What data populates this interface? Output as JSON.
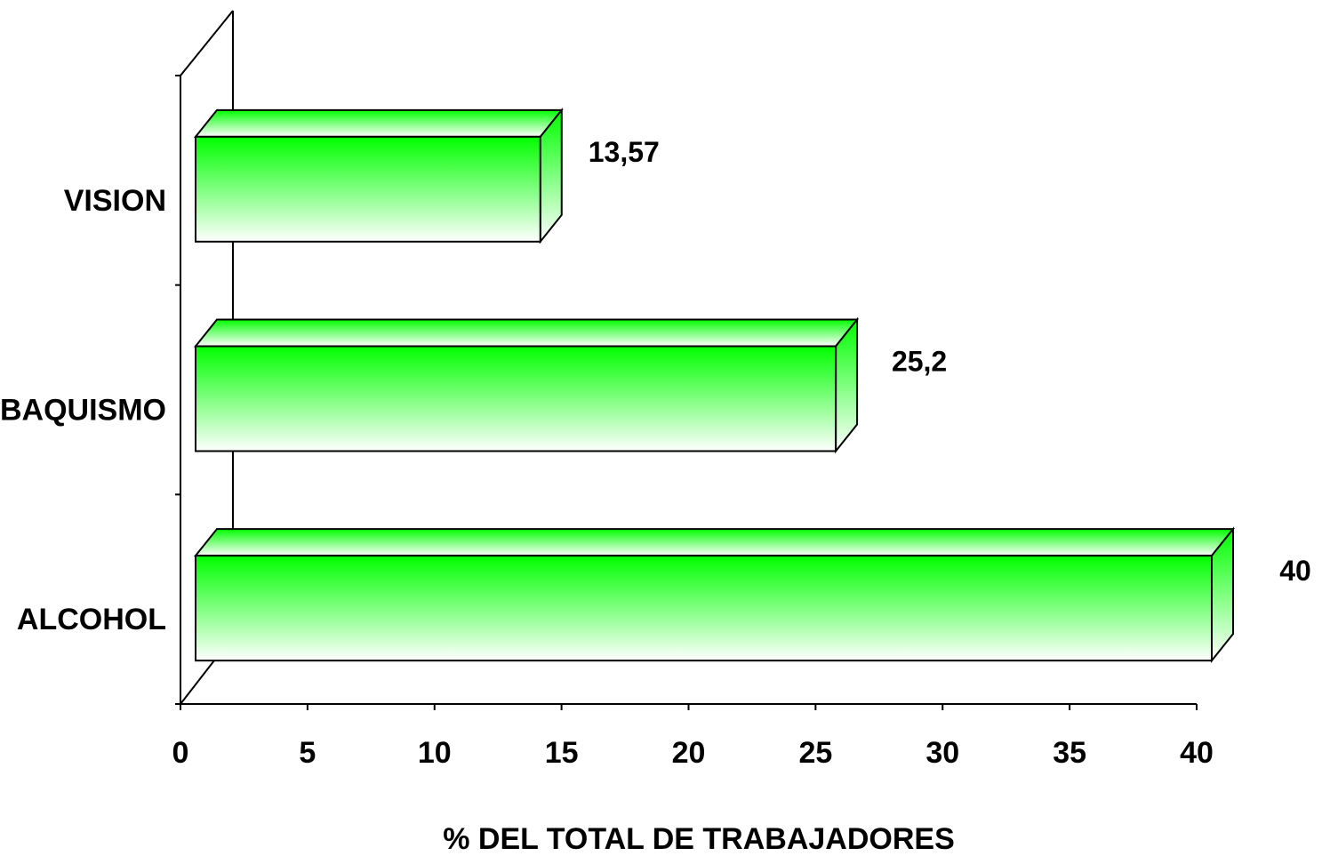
{
  "chart_data": {
    "type": "bar",
    "orientation": "horizontal",
    "three_d": true,
    "title": "",
    "xlabel": "% DEL TOTAL DE TRABAJADORES",
    "ylabel": "",
    "categories": [
      "VISION",
      "TABAQUISMO",
      "ALCOHOL"
    ],
    "values": [
      13.57,
      25.2,
      40
    ],
    "value_labels": [
      "13,57",
      "25,2",
      "40"
    ],
    "xlim": [
      0,
      40
    ],
    "x_ticks": [
      "0",
      "5",
      "10",
      "15",
      "20",
      "25",
      "30",
      "35",
      "40"
    ],
    "grid": false,
    "legend": "none",
    "colors": {
      "bar_top": "#00ff00",
      "bar_bottom": "#ffffff",
      "outline": "#000000"
    }
  }
}
